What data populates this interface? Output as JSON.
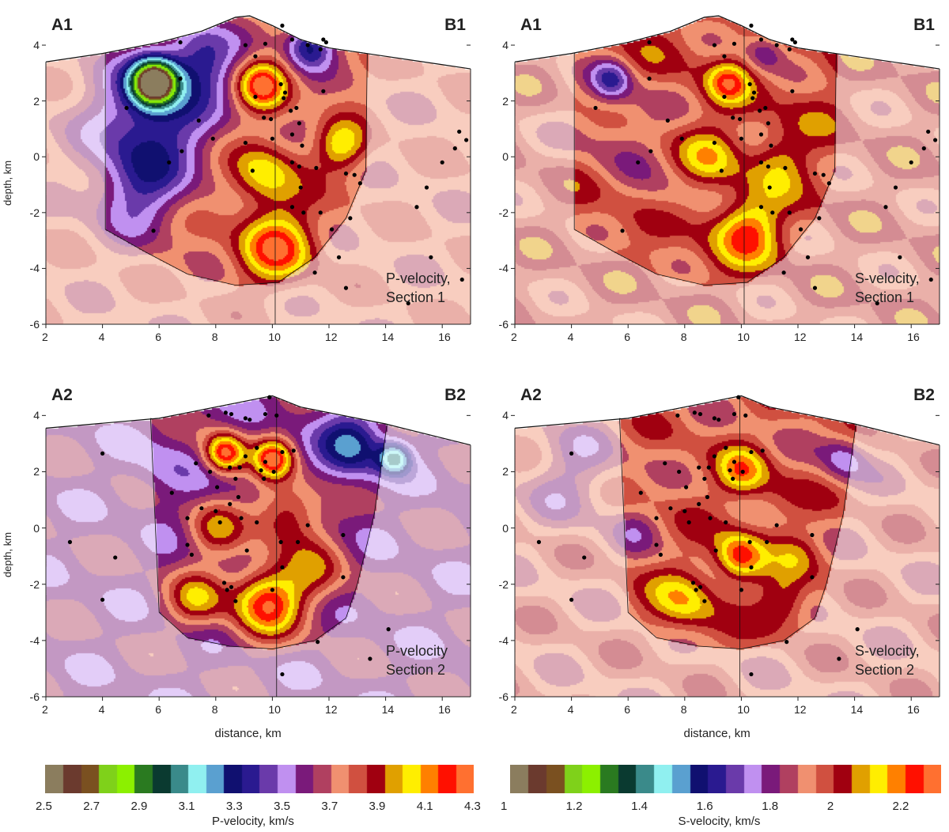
{
  "chart_data": [
    {
      "type": "heatmap",
      "name": "P-velocity Section 1",
      "note": [
        "P-velocity,",
        "Section 1"
      ],
      "corner_left": "A1",
      "corner_right": "B1",
      "xlabel": "",
      "ylabel": "depth, km",
      "xlim": [
        2,
        17
      ],
      "ylim": [
        -6,
        5.05
      ],
      "x_ticks": [
        2,
        4,
        6,
        8,
        10,
        12,
        14,
        16
      ],
      "y_ticks": [
        4,
        2,
        0,
        -2,
        -4,
        -6
      ],
      "colorbar": 0,
      "base_value": 3.75,
      "topography": [
        [
          2,
          3.4
        ],
        [
          4,
          3.7
        ],
        [
          6,
          4.1
        ],
        [
          7.5,
          4.5
        ],
        [
          8.7,
          5.0
        ],
        [
          9.2,
          5.05
        ],
        [
          10,
          4.7
        ],
        [
          11,
          4.2
        ],
        [
          12,
          3.9
        ],
        [
          14,
          3.6
        ],
        [
          16,
          3.3
        ],
        [
          17,
          3.15
        ]
      ],
      "resolved_area": [
        [
          4.1,
          3.7
        ],
        [
          4.1,
          -2.6
        ],
        [
          5.5,
          -3.4
        ],
        [
          7,
          -4.2
        ],
        [
          8.7,
          -4.6
        ],
        [
          10.2,
          -4.5
        ],
        [
          11.5,
          -3.6
        ],
        [
          12.6,
          -2.2
        ],
        [
          13.3,
          -0.5
        ],
        [
          13.35,
          3.6
        ]
      ],
      "section_line_x": 10.1,
      "anomalies": [
        [
          5.8,
          1.5,
          3.3,
          1.5
        ],
        [
          7.5,
          3.6,
          3.4,
          0.9
        ],
        [
          5.8,
          2.7,
          2.55,
          0.55
        ],
        [
          9.6,
          2.6,
          4.25,
          0.6
        ],
        [
          10.1,
          -3.2,
          4.2,
          0.9
        ],
        [
          9.7,
          -0.6,
          4.05,
          0.8
        ],
        [
          12.4,
          0.4,
          4.05,
          0.6
        ],
        [
          11.3,
          1.6,
          3.7,
          0.6
        ],
        [
          11.3,
          4,
          3.3,
          0.6
        ],
        [
          5.2,
          -1.2,
          3.45,
          1.1
        ]
      ],
      "events": [
        [
          6.75,
          4.1
        ],
        [
          4.85,
          1.75
        ],
        [
          6.75,
          2.8
        ],
        [
          7.4,
          1.3
        ],
        [
          7.9,
          0.65
        ],
        [
          6.8,
          0.2
        ],
        [
          6.35,
          -0.2
        ],
        [
          5.8,
          -2.65
        ],
        [
          9.05,
          4.0
        ],
        [
          9.4,
          3.6
        ],
        [
          9.75,
          4.05
        ],
        [
          10.35,
          4.7
        ],
        [
          10.7,
          4.2
        ],
        [
          11.25,
          4.0
        ],
        [
          11.7,
          3.85
        ],
        [
          11.8,
          4.2
        ],
        [
          11.9,
          4.1
        ],
        [
          9.4,
          2.15
        ],
        [
          9.7,
          1.4
        ],
        [
          9.95,
          1.35
        ],
        [
          10.3,
          2.6
        ],
        [
          10.45,
          2.3
        ],
        [
          10.4,
          2.1
        ],
        [
          10.65,
          1.65
        ],
        [
          10.85,
          1.75
        ],
        [
          10.95,
          1.2
        ],
        [
          10.7,
          0.8
        ],
        [
          10.0,
          0.65
        ],
        [
          11.05,
          0.4
        ],
        [
          9.05,
          0.5
        ],
        [
          9.3,
          -0.5
        ],
        [
          10.7,
          -0.2
        ],
        [
          10.95,
          -0.35
        ],
        [
          11.55,
          -0.4
        ],
        [
          11.8,
          2.35
        ],
        [
          11.0,
          -1.1
        ],
        [
          12.6,
          -0.6
        ],
        [
          13.1,
          -0.95
        ],
        [
          12.9,
          -0.65
        ],
        [
          10.7,
          -1.8
        ],
        [
          11.1,
          -2.0
        ],
        [
          11.7,
          -2.0
        ],
        [
          12.75,
          -2.2
        ],
        [
          12.1,
          -2.6
        ],
        [
          12.35,
          -3.6
        ],
        [
          11.5,
          -4.15
        ],
        [
          12.6,
          -4.7
        ],
        [
          15.45,
          -1.1
        ],
        [
          15.1,
          -1.8
        ],
        [
          15.6,
          -3.6
        ],
        [
          14.8,
          -5.25
        ],
        [
          16.0,
          -0.2
        ],
        [
          16.45,
          0.3
        ],
        [
          16.6,
          0.9
        ],
        [
          16.85,
          0.6
        ],
        [
          16.7,
          -4.4
        ]
      ]
    },
    {
      "type": "heatmap",
      "name": "S-velocity Section 1",
      "note": [
        "S-velocity,",
        "Section 1"
      ],
      "corner_left": "A1",
      "corner_right": "B1",
      "xlabel": "",
      "ylabel": "",
      "xlim": [
        2,
        17
      ],
      "ylim": [
        -6,
        5.05
      ],
      "x_ticks": [
        2,
        4,
        6,
        8,
        10,
        12,
        14,
        16
      ],
      "y_ticks": [
        4,
        2,
        0,
        -2,
        -4,
        -6
      ],
      "colorbar": 1,
      "base_value": 1.97,
      "topography": [
        [
          2,
          3.4
        ],
        [
          4,
          3.7
        ],
        [
          6,
          4.1
        ],
        [
          7.5,
          4.5
        ],
        [
          8.7,
          5.0
        ],
        [
          9.2,
          5.05
        ],
        [
          10,
          4.7
        ],
        [
          11,
          4.2
        ],
        [
          12,
          3.9
        ],
        [
          14,
          3.6
        ],
        [
          16,
          3.3
        ],
        [
          17,
          3.15
        ]
      ],
      "resolved_area": [
        [
          4.1,
          3.7
        ],
        [
          4.1,
          -2.6
        ],
        [
          5.5,
          -3.4
        ],
        [
          7,
          -4.2
        ],
        [
          8.7,
          -4.6
        ],
        [
          10.2,
          -4.5
        ],
        [
          11.5,
          -3.6
        ],
        [
          12.6,
          -2.2
        ],
        [
          13.3,
          -0.5
        ],
        [
          13.35,
          3.6
        ]
      ],
      "section_line_x": 10.1,
      "anomalies": [
        [
          5.6,
          1.0,
          1.85,
          1.3
        ],
        [
          5.4,
          2.8,
          1.72,
          0.5
        ],
        [
          9.5,
          2.7,
          2.2,
          0.5
        ],
        [
          10.2,
          -2.6,
          2.22,
          0.8
        ],
        [
          8.9,
          0.0,
          2.1,
          0.7
        ],
        [
          11.3,
          0.0,
          2.08,
          0.7
        ],
        [
          10.8,
          3.8,
          1.8,
          0.5
        ],
        [
          7.2,
          -1.5,
          1.9,
          0.8
        ]
      ],
      "events": "same_as_0"
    },
    {
      "type": "heatmap",
      "name": "P-velocity Section 2",
      "note": [
        "P-velocity",
        "Section 2"
      ],
      "corner_left": "A2",
      "corner_right": "B2",
      "xlabel": "distance, km",
      "ylabel": "depth, km",
      "xlim": [
        2,
        17
      ],
      "ylim": [
        -6,
        5.05
      ],
      "x_ticks": [
        2,
        4,
        6,
        8,
        10,
        12,
        14,
        16
      ],
      "y_ticks": [
        4,
        2,
        0,
        -2,
        -4,
        -6
      ],
      "colorbar": 0,
      "base_value": 3.6,
      "topography": [
        [
          2,
          3.55
        ],
        [
          6,
          3.9
        ],
        [
          8,
          4.3
        ],
        [
          9,
          4.5
        ],
        [
          10,
          4.7
        ],
        [
          11,
          4.3
        ],
        [
          12,
          4.1
        ],
        [
          14,
          3.7
        ],
        [
          16,
          3.2
        ],
        [
          17,
          2.95
        ]
      ],
      "resolved_area": [
        [
          5.7,
          3.9
        ],
        [
          6.0,
          -3.0
        ],
        [
          7,
          -3.9
        ],
        [
          8.5,
          -4.2
        ],
        [
          10,
          -4.3
        ],
        [
          11.5,
          -4.0
        ],
        [
          12.6,
          -3.2
        ],
        [
          13.0,
          -2
        ],
        [
          13.6,
          0.5
        ],
        [
          14.05,
          3.7
        ]
      ],
      "section_line_x": 10.15,
      "anomalies": [
        [
          12.8,
          3.0,
          3.25,
          0.8
        ],
        [
          6.2,
          2.0,
          3.5,
          0.8
        ],
        [
          8.3,
          2.7,
          4.25,
          0.5
        ],
        [
          10,
          2.5,
          4.2,
          0.5
        ],
        [
          9.8,
          -2.6,
          4.2,
          0.9
        ],
        [
          8,
          0,
          3.9,
          0.7
        ],
        [
          10.5,
          0.5,
          3.95,
          0.8
        ],
        [
          11.5,
          -1.5,
          3.85,
          0.8
        ],
        [
          7.3,
          -2.5,
          3.95,
          0.7
        ],
        [
          14.3,
          2.5,
          3.1,
          0.4
        ]
      ],
      "events": [
        [
          4.0,
          2.65
        ],
        [
          2.85,
          -0.5
        ],
        [
          4.45,
          -1.05
        ],
        [
          4.0,
          -2.55
        ],
        [
          7.75,
          4.0
        ],
        [
          8.35,
          4.1
        ],
        [
          8.55,
          4.05
        ],
        [
          9.05,
          3.9
        ],
        [
          9.2,
          3.85
        ],
        [
          9.9,
          4.65
        ],
        [
          10.15,
          4.0
        ],
        [
          9.75,
          4.05
        ],
        [
          7.3,
          2.3
        ],
        [
          7.8,
          2.0
        ],
        [
          8.05,
          1.45
        ],
        [
          8.5,
          2.15
        ],
        [
          8.7,
          1.75
        ],
        [
          8.85,
          2.15
        ],
        [
          9.05,
          2.55
        ],
        [
          9.45,
          2.85
        ],
        [
          9.6,
          2.05
        ],
        [
          9.7,
          1.75
        ],
        [
          9.75,
          2.35
        ],
        [
          10.05,
          2.0
        ],
        [
          10.35,
          2.7
        ],
        [
          10.75,
          2.75
        ],
        [
          6.45,
          1.25
        ],
        [
          7.0,
          0.35
        ],
        [
          7.5,
          0.7
        ],
        [
          8.0,
          0.6
        ],
        [
          8.15,
          0.2
        ],
        [
          8.5,
          0.85
        ],
        [
          8.8,
          1.1
        ],
        [
          8.9,
          0.35
        ],
        [
          9.45,
          0.2
        ],
        [
          7.15,
          -0.95
        ],
        [
          7.0,
          -0.6
        ],
        [
          9.1,
          -0.8
        ],
        [
          8.3,
          -1.95
        ],
        [
          8.4,
          -2.2
        ],
        [
          8.55,
          -2.1
        ],
        [
          8.7,
          -2.6
        ],
        [
          10.0,
          -2.2
        ],
        [
          10.3,
          -0.5
        ],
        [
          10.9,
          -0.5
        ],
        [
          11.25,
          0.1
        ],
        [
          12.5,
          -0.25
        ],
        [
          12.5,
          -1.75
        ],
        [
          10.35,
          -1.4
        ],
        [
          11.6,
          -4.05
        ],
        [
          14.1,
          -3.6
        ],
        [
          13.45,
          -4.65
        ],
        [
          10.35,
          -5.2
        ]
      ]
    },
    {
      "type": "heatmap",
      "name": "S-velocity Section 2",
      "note": [
        "S-velocity,",
        "Section 2"
      ],
      "corner_left": "A2",
      "corner_right": "B2",
      "xlabel": "distance, km",
      "ylabel": "",
      "xlim": [
        2,
        17
      ],
      "ylim": [
        -6,
        5.05
      ],
      "x_ticks": [
        2,
        4,
        6,
        8,
        10,
        12,
        14,
        16
      ],
      "y_ticks": [
        4,
        2,
        0,
        -2,
        -4,
        -6
      ],
      "colorbar": 1,
      "base_value": 1.93,
      "topography": [
        [
          2,
          3.55
        ],
        [
          6,
          3.9
        ],
        [
          8,
          4.3
        ],
        [
          9,
          4.5
        ],
        [
          10,
          4.7
        ],
        [
          11,
          4.3
        ],
        [
          12,
          4.1
        ],
        [
          14,
          3.7
        ],
        [
          16,
          3.2
        ],
        [
          17,
          2.95
        ]
      ],
      "resolved_area": [
        [
          5.7,
          3.9
        ],
        [
          6.0,
          -3.0
        ],
        [
          7,
          -3.9
        ],
        [
          8.5,
          -4.2
        ],
        [
          10,
          -4.3
        ],
        [
          11.5,
          -4.0
        ],
        [
          12.6,
          -3.2
        ],
        [
          13.0,
          -2
        ],
        [
          13.6,
          0.5
        ],
        [
          14.05,
          3.7
        ]
      ],
      "section_line_x": 9.95,
      "anomalies": [
        [
          9.9,
          -1,
          2.25,
          0.6
        ],
        [
          10,
          2,
          2.15,
          0.6
        ],
        [
          8,
          -2.6,
          2.12,
          0.8
        ],
        [
          11.5,
          -2.6,
          2.1,
          0.6
        ],
        [
          11.2,
          1,
          2.0,
          0.7
        ],
        [
          8,
          1.5,
          1.95,
          0.8
        ],
        [
          12,
          -1,
          2.02,
          0.6
        ],
        [
          6.2,
          0,
          1.85,
          0.6
        ],
        [
          13.6,
          2.5,
          1.75,
          0.6
        ],
        [
          4,
          2,
          1.8,
          1.2
        ]
      ],
      "events": "same_as_2"
    }
  ],
  "colorbars": [
    {
      "label": "P-velocity, km/s",
      "range": [
        2.5,
        4.3
      ],
      "ticks": [
        "2.5",
        "2.7",
        "2.9",
        "3.1",
        "3.3",
        "3.5",
        "3.7",
        "3.9",
        "4.1",
        "4.3"
      ]
    },
    {
      "label": "S-velocity, km/s",
      "range": [
        1.0,
        2.32
      ],
      "ticks": [
        "1",
        "1.2",
        "1.4",
        "1.6",
        "1.8",
        "2",
        "2.2"
      ],
      "tick_values": [
        1,
        1.2,
        1.4,
        1.6,
        1.8,
        2,
        2.2
      ]
    }
  ],
  "colormap": [
    "#8b7d5e",
    "#6b3a2e",
    "#7a5020",
    "#7fd11a",
    "#8cf000",
    "#2a7a20",
    "#0a3a30",
    "#3a8a8a",
    "#90f0f0",
    "#5aa0d0",
    "#101070",
    "#2a1a90",
    "#6a3aaa",
    "#c090f0",
    "#7a1a7a",
    "#b04060",
    "#f09070",
    "#d05040",
    "#a00010",
    "#e0a000",
    "#ffee00",
    "#ff8000",
    "#ff1000",
    "#ff7030"
  ]
}
